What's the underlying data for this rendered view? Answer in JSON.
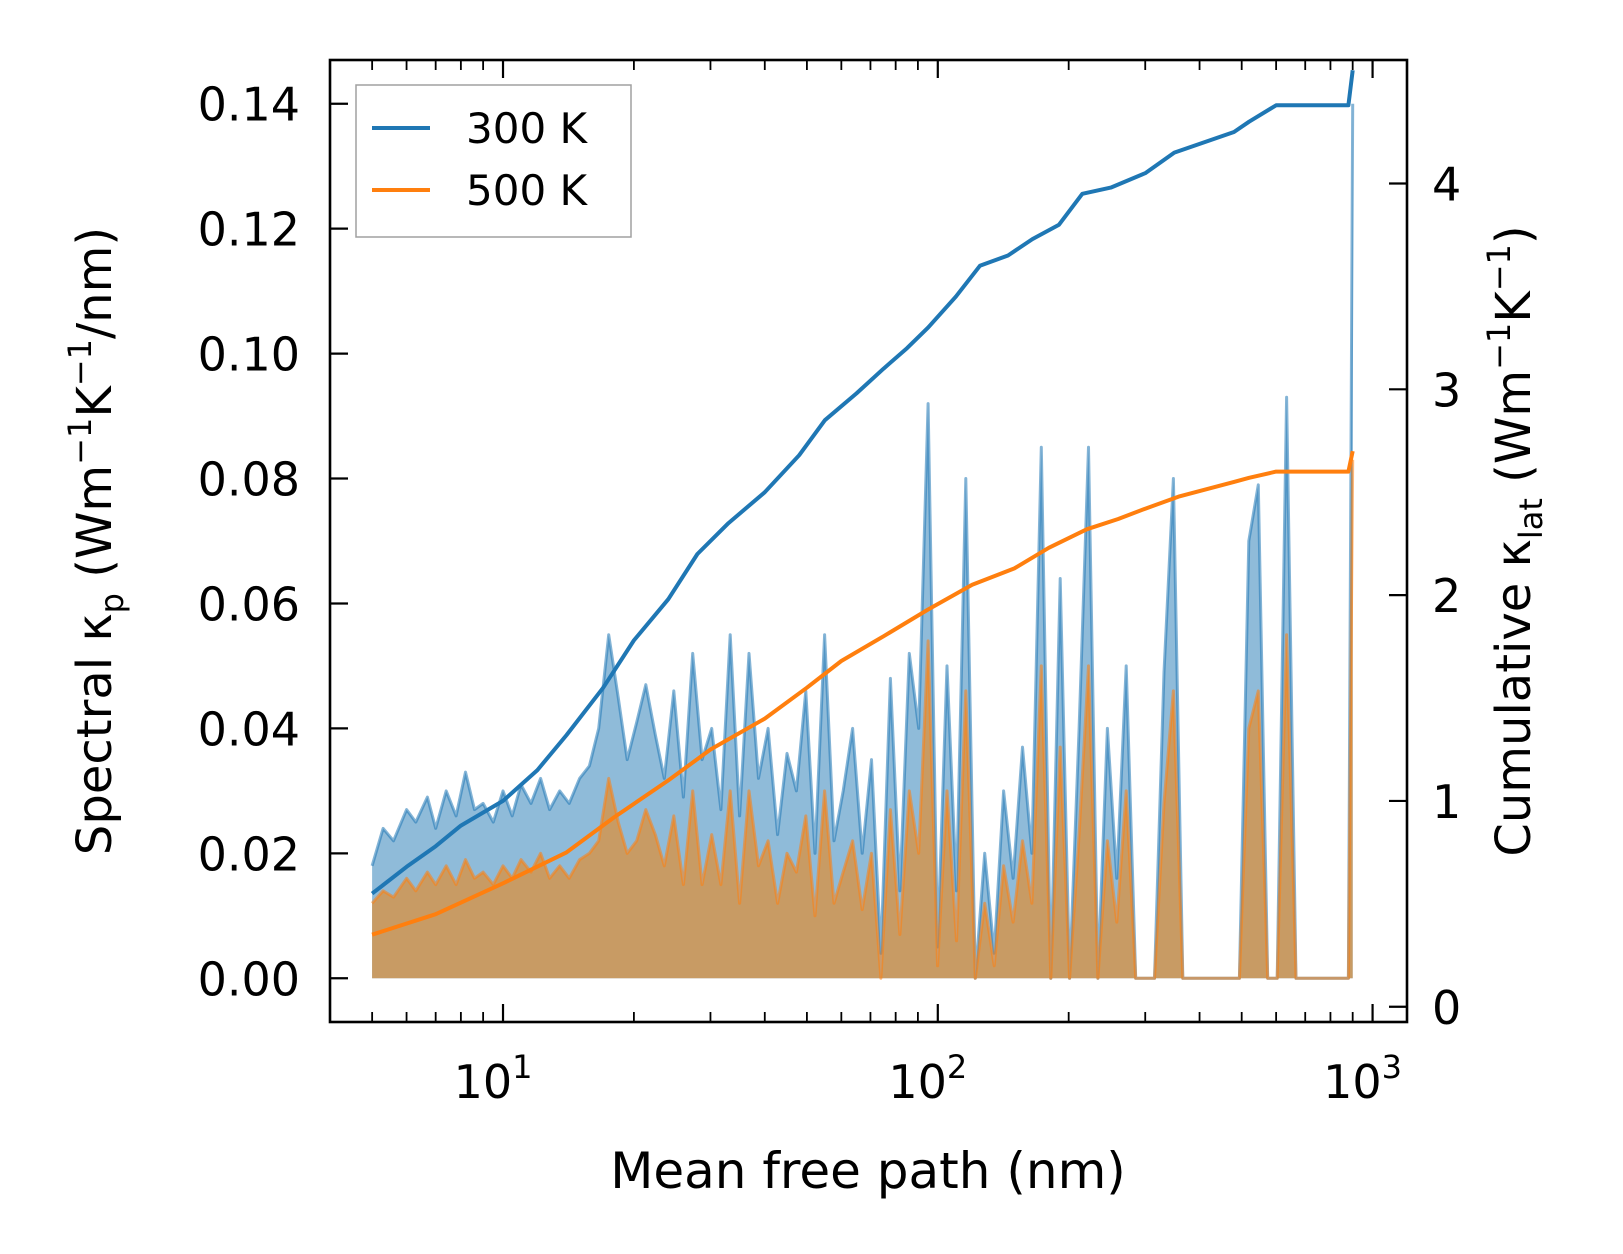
{
  "colors": {
    "series_300K": "#1f77b4",
    "series_500K": "#ff7f0e",
    "fill_300K": "#1f77b4",
    "fill_500K": "#d2954f"
  },
  "chart_data": {
    "type": "line",
    "xlabel": "Mean free path (nm)",
    "xscale": "log",
    "xlim": [
      4.0,
      1200
    ],
    "x_ticks": [
      {
        "value": 10,
        "base": "10",
        "exp": "1"
      },
      {
        "value": 100,
        "base": "10",
        "exp": "2"
      },
      {
        "value": 1000,
        "base": "10",
        "exp": "3"
      }
    ],
    "y_left": {
      "label_parts": [
        "Spectral κ",
        "p",
        " (Wm",
        "−1",
        "K",
        "−1",
        "/nm)"
      ],
      "lim": [
        -0.007,
        0.147
      ],
      "ticks": [
        "0.00",
        "0.02",
        "0.04",
        "0.06",
        "0.08",
        "0.10",
        "0.12",
        "0.14"
      ]
    },
    "y_right": {
      "label_parts": [
        "Cumulative κ",
        "lat",
        " (Wm",
        "−1",
        "K",
        "−1",
        ")"
      ],
      "lim": [
        -0.074,
        4.6
      ],
      "ticks": [
        "0",
        "1",
        "2",
        "3",
        "4"
      ]
    },
    "legend": {
      "position": "top-left",
      "entries": [
        "300 K",
        "500 K"
      ]
    },
    "series": [
      {
        "name": "300 K",
        "axis": "right",
        "kind": "cumulative",
        "x": [
          5.0,
          6.0,
          7.0,
          8.0,
          10.0,
          12.0,
          14.0,
          17.0,
          20.0,
          24.0,
          28.0,
          33.0,
          40.0,
          48.0,
          55.0,
          65.0,
          75.0,
          85.0,
          95.0,
          110.0,
          125.0,
          145.0,
          165.0,
          190.0,
          215.0,
          250.0,
          300.0,
          350.0,
          480.0,
          520.0,
          600.0,
          880.0,
          900.0
        ],
        "values": [
          0.55,
          0.68,
          0.78,
          0.88,
          1.0,
          1.15,
          1.32,
          1.55,
          1.78,
          1.98,
          2.2,
          2.35,
          2.5,
          2.68,
          2.85,
          2.98,
          3.1,
          3.2,
          3.3,
          3.45,
          3.6,
          3.65,
          3.73,
          3.8,
          3.95,
          3.98,
          4.05,
          4.15,
          4.25,
          4.3,
          4.38,
          4.38,
          4.55
        ]
      },
      {
        "name": "500 K",
        "axis": "right",
        "kind": "cumulative",
        "x": [
          5.0,
          7.0,
          10.0,
          14.0,
          18.0,
          24.0,
          30.0,
          40.0,
          50.0,
          60.0,
          75.0,
          95.0,
          120.0,
          150.0,
          180.0,
          220.0,
          260.0,
          300.0,
          360.0,
          480.0,
          520.0,
          600.0,
          880.0,
          900.0
        ],
        "values": [
          0.35,
          0.45,
          0.6,
          0.75,
          0.92,
          1.1,
          1.25,
          1.4,
          1.55,
          1.68,
          1.8,
          1.93,
          2.05,
          2.13,
          2.23,
          2.32,
          2.37,
          2.42,
          2.48,
          2.55,
          2.57,
          2.6,
          2.6,
          2.7
        ]
      },
      {
        "name": "300 K spectral",
        "axis": "left",
        "kind": "spectral",
        "x": [
          5.0,
          5.3,
          5.6,
          6.0,
          6.3,
          6.7,
          7.0,
          7.4,
          7.8,
          8.2,
          8.6,
          9.0,
          9.5,
          10.0,
          10.5,
          11.0,
          11.6,
          12.2,
          12.8,
          13.5,
          14.2,
          15.0,
          15.8,
          16.6,
          17.5,
          18.4,
          19.3,
          20.3,
          21.3,
          22.4,
          23.5,
          24.7,
          26.0,
          27.3,
          28.7,
          30.2,
          31.7,
          33.3,
          35.0,
          36.8,
          38.7,
          40.7,
          42.8,
          45.0,
          47.3,
          49.7,
          52.2,
          54.9,
          57.7,
          60.6,
          63.7,
          67.0,
          70.4,
          74.0,
          77.8,
          81.8,
          86.0,
          90.4,
          95.0,
          99.9,
          105.0,
          110.4,
          116.0,
          122.0,
          128.2,
          134.8,
          141.7,
          149.0,
          156.6,
          164.6,
          173.0,
          181.9,
          191.2,
          201.0,
          211.3,
          222.1,
          233.5,
          245.5,
          258.0,
          271.3,
          285.2,
          299.8,
          315.1,
          331.3,
          348.2,
          366.1,
          384.8,
          404.5,
          425.3,
          447.0,
          470.0,
          494.0,
          519.3,
          545.9,
          573.9,
          603.3,
          634.2,
          666.6,
          700.8,
          736.7,
          774.4,
          814.0,
          855.7,
          880.0,
          900.0
        ],
        "values": [
          0.018,
          0.024,
          0.022,
          0.027,
          0.025,
          0.029,
          0.024,
          0.03,
          0.026,
          0.033,
          0.027,
          0.028,
          0.025,
          0.03,
          0.026,
          0.031,
          0.028,
          0.032,
          0.027,
          0.03,
          0.028,
          0.032,
          0.034,
          0.04,
          0.055,
          0.045,
          0.035,
          0.041,
          0.047,
          0.039,
          0.032,
          0.046,
          0.029,
          0.052,
          0.035,
          0.04,
          0.027,
          0.055,
          0.026,
          0.052,
          0.032,
          0.04,
          0.023,
          0.036,
          0.03,
          0.046,
          0.02,
          0.055,
          0.022,
          0.03,
          0.04,
          0.02,
          0.035,
          0.004,
          0.048,
          0.014,
          0.052,
          0.04,
          0.092,
          0.005,
          0.05,
          0.014,
          0.08,
          0.0,
          0.02,
          0.004,
          0.03,
          0.016,
          0.037,
          0.02,
          0.085,
          0.0,
          0.064,
          0.0,
          0.04,
          0.085,
          0.0,
          0.04,
          0.016,
          0.05,
          0.0,
          0.0,
          0.0,
          0.049,
          0.08,
          0.0,
          0.0,
          0.0,
          0.0,
          0.0,
          0.0,
          0.0,
          0.07,
          0.079,
          0.0,
          0.0,
          0.093,
          0.0,
          0.0,
          0.0,
          0.0,
          0.0,
          0.0,
          0.0,
          0.14
        ]
      },
      {
        "name": "500 K spectral",
        "axis": "left",
        "kind": "spectral",
        "x": [
          5.0,
          5.3,
          5.6,
          6.0,
          6.3,
          6.7,
          7.0,
          7.4,
          7.8,
          8.2,
          8.6,
          9.0,
          9.5,
          10.0,
          10.5,
          11.0,
          11.6,
          12.2,
          12.8,
          13.5,
          14.2,
          15.0,
          15.8,
          16.6,
          17.5,
          18.4,
          19.3,
          20.3,
          21.3,
          22.4,
          23.5,
          24.7,
          26.0,
          27.3,
          28.7,
          30.2,
          31.7,
          33.3,
          35.0,
          36.8,
          38.7,
          40.7,
          42.8,
          45.0,
          47.3,
          49.7,
          52.2,
          54.9,
          57.7,
          60.6,
          63.7,
          67.0,
          70.4,
          74.0,
          77.8,
          81.8,
          86.0,
          90.4,
          95.0,
          99.9,
          105.0,
          110.4,
          116.0,
          122.0,
          128.2,
          134.8,
          141.7,
          149.0,
          156.6,
          164.6,
          173.0,
          181.9,
          191.2,
          201.0,
          211.3,
          222.1,
          233.5,
          245.5,
          258.0,
          271.3,
          285.2,
          299.8,
          315.1,
          331.3,
          348.2,
          366.1,
          384.8,
          404.5,
          425.3,
          447.0,
          470.0,
          494.0,
          519.3,
          545.9,
          573.9,
          603.3,
          634.2,
          666.6,
          700.8,
          736.7,
          774.4,
          814.0,
          855.7,
          880.0,
          900.0
        ],
        "values": [
          0.012,
          0.014,
          0.013,
          0.016,
          0.014,
          0.017,
          0.015,
          0.018,
          0.015,
          0.019,
          0.016,
          0.017,
          0.015,
          0.018,
          0.016,
          0.019,
          0.017,
          0.02,
          0.016,
          0.018,
          0.016,
          0.019,
          0.02,
          0.022,
          0.032,
          0.025,
          0.02,
          0.022,
          0.027,
          0.023,
          0.018,
          0.026,
          0.015,
          0.03,
          0.015,
          0.023,
          0.015,
          0.03,
          0.012,
          0.03,
          0.018,
          0.022,
          0.012,
          0.02,
          0.017,
          0.026,
          0.01,
          0.03,
          0.012,
          0.017,
          0.022,
          0.011,
          0.02,
          0.0,
          0.027,
          0.007,
          0.03,
          0.02,
          0.054,
          0.002,
          0.03,
          0.006,
          0.046,
          0.0,
          0.012,
          0.002,
          0.018,
          0.009,
          0.022,
          0.012,
          0.05,
          0.0,
          0.037,
          0.0,
          0.023,
          0.05,
          0.0,
          0.022,
          0.009,
          0.03,
          0.0,
          0.0,
          0.0,
          0.028,
          0.046,
          0.0,
          0.0,
          0.0,
          0.0,
          0.0,
          0.0,
          0.0,
          0.04,
          0.046,
          0.0,
          0.0,
          0.055,
          0.0,
          0.0,
          0.0,
          0.0,
          0.0,
          0.0,
          0.0,
          0.083
        ]
      }
    ]
  }
}
